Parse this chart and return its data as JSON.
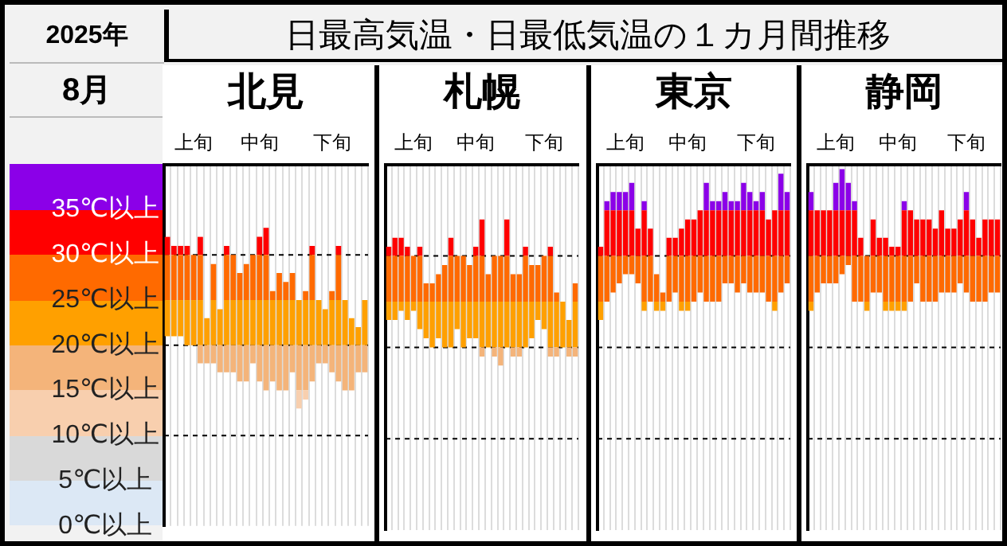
{
  "chart_data": [
    {
      "type": "other",
      "title": "日最高気温・日最低気温の１カ月間推移",
      "annotations": [
        "2025年",
        "8月"
      ]
    },
    {
      "type": "bar",
      "title": "北見",
      "grid": "x",
      "categories": [
        null,
        null,
        null,
        null,
        "上旬",
        null,
        null,
        null,
        null,
        null,
        null,
        null,
        null,
        null,
        "中旬",
        null,
        null,
        null,
        null,
        null,
        null,
        null,
        null,
        null,
        null,
        "下旬",
        null,
        null,
        null,
        null,
        null
      ],
      "ylim": [
        0,
        40
      ],
      "yticks": [
        {
          "value": 0,
          "label": "0℃以上"
        },
        {
          "value": 5,
          "label": "5℃以上"
        },
        {
          "value": 10,
          "label": "10℃以上"
        },
        {
          "value": 15,
          "label": "15℃以上"
        },
        {
          "value": 20,
          "label": "20℃以上"
        },
        {
          "value": 25,
          "label": "25℃以上"
        },
        {
          "value": 30,
          "label": "30℃以上"
        },
        {
          "value": 35,
          "label": "35℃以上"
        },
        {
          "value": 40,
          "label": null
        }
      ],
      "ref_lines": [
        {
          "axis": "y",
          "value": 10,
          "line_style": "dashed",
          "color": "#000000"
        },
        {
          "axis": "y",
          "value": 20,
          "line_style": "dashed",
          "color": "#000000"
        },
        {
          "axis": "y",
          "value": 30,
          "line_style": "dashed",
          "color": "#000000"
        }
      ],
      "series": [
        {
          "color": "#dce8f5",
          "values": [
            null,
            null,
            null,
            null,
            null,
            null,
            null,
            null,
            null,
            null,
            null,
            null,
            null,
            null,
            null,
            null,
            null,
            null,
            null,
            null,
            null,
            null,
            null,
            null,
            null,
            null,
            null,
            null,
            null,
            null,
            null
          ]
        },
        {
          "color": "#d9d9d9",
          "values": [
            null,
            null,
            null,
            null,
            null,
            null,
            null,
            null,
            null,
            null,
            null,
            null,
            null,
            null,
            null,
            null,
            null,
            null,
            null,
            null,
            null,
            null,
            null,
            null,
            null,
            null,
            null,
            null,
            null,
            null,
            null
          ]
        },
        {
          "color": "#f8cfae",
          "base": [
            null,
            null,
            null,
            null,
            null,
            null,
            null,
            null,
            null,
            null,
            null,
            null,
            null,
            null,
            null,
            null,
            null,
            null,
            null,
            null,
            13,
            14,
            null,
            null,
            null,
            null,
            null,
            null,
            null,
            null,
            null
          ],
          "values": [
            null,
            null,
            null,
            null,
            null,
            null,
            null,
            null,
            null,
            null,
            null,
            null,
            null,
            null,
            null,
            null,
            null,
            null,
            null,
            null,
            2,
            1,
            null,
            null,
            null,
            null,
            null,
            null,
            null,
            null,
            null
          ]
        },
        {
          "color": "#f4b47a",
          "base": [
            null,
            null,
            null,
            null,
            null,
            18,
            18,
            18,
            17,
            17,
            17,
            16,
            16,
            18,
            16,
            15,
            16,
            15,
            15,
            17,
            15,
            15,
            16,
            18,
            18,
            17,
            16,
            15,
            15,
            17,
            17
          ],
          "values": [
            null,
            null,
            null,
            null,
            null,
            2,
            2,
            2,
            3,
            3,
            3,
            4,
            4,
            2,
            4,
            5,
            4,
            5,
            5,
            3,
            5,
            5,
            4,
            2,
            2,
            3,
            4,
            5,
            5,
            3,
            3
          ]
        },
        {
          "color": "#ffa000",
          "base": [
            21,
            21,
            21,
            20,
            20,
            20,
            20,
            20,
            20,
            20,
            20,
            20,
            20,
            20,
            20,
            20,
            20,
            20,
            20,
            20,
            20,
            20,
            20,
            20,
            20,
            20,
            20,
            20,
            20,
            20,
            20
          ],
          "values": [
            4,
            4,
            4,
            5,
            5,
            5,
            3,
            5,
            4,
            5,
            5,
            5,
            5,
            5,
            5,
            5,
            5,
            5,
            5,
            5,
            5,
            5,
            5,
            5,
            4,
            5,
            5,
            5,
            3,
            2,
            5
          ]
        },
        {
          "color": "#ff6a00",
          "base": [
            25,
            25,
            25,
            25,
            25,
            25,
            null,
            25,
            null,
            25,
            25,
            25,
            25,
            25,
            25,
            25,
            25,
            25,
            25,
            25,
            null,
            25,
            25,
            null,
            null,
            25,
            25,
            null,
            null,
            null,
            null
          ],
          "values": [
            5,
            5,
            5,
            5,
            5,
            5,
            null,
            4,
            null,
            5,
            5,
            3,
            4,
            5,
            5,
            5,
            1,
            3,
            2,
            3,
            null,
            1,
            5,
            null,
            null,
            1,
            5,
            null,
            null,
            null,
            null
          ]
        },
        {
          "color": "#ff0000",
          "base": [
            30,
            30,
            30,
            30,
            null,
            30,
            null,
            null,
            null,
            30,
            null,
            null,
            null,
            null,
            30,
            30,
            null,
            null,
            null,
            null,
            null,
            null,
            30,
            null,
            null,
            null,
            30,
            null,
            null,
            null,
            null
          ],
          "values": [
            2,
            1,
            1,
            1,
            null,
            2,
            null,
            null,
            null,
            1,
            null,
            null,
            null,
            null,
            2,
            3,
            null,
            null,
            null,
            null,
            null,
            null,
            1,
            null,
            null,
            null,
            1,
            null,
            null,
            null,
            null
          ]
        },
        {
          "color": "#8b00e8",
          "values": [
            null,
            null,
            null,
            null,
            null,
            null,
            null,
            null,
            null,
            null,
            null,
            null,
            null,
            null,
            null,
            null,
            null,
            null,
            null,
            null,
            null,
            null,
            null,
            null,
            null,
            null,
            null,
            null,
            null,
            null,
            null
          ]
        }
      ]
    },
    {
      "type": "bar",
      "title": "札幌",
      "grid": "x",
      "tick_labels": "x",
      "categories": [
        null,
        null,
        null,
        null,
        "上旬",
        null,
        null,
        null,
        null,
        null,
        null,
        null,
        null,
        null,
        "中旬",
        null,
        null,
        null,
        null,
        null,
        null,
        null,
        null,
        null,
        null,
        "下旬",
        null,
        null,
        null,
        null,
        null
      ],
      "ylim": [
        0,
        40
      ],
      "ref_lines": [
        {
          "axis": "y",
          "value": 10,
          "line_style": "dashed",
          "color": "#000000"
        },
        {
          "axis": "y",
          "value": 20,
          "line_style": "dashed",
          "color": "#000000"
        },
        {
          "axis": "y",
          "value": 30,
          "line_style": "dashed",
          "color": "#000000"
        }
      ],
      "series": [
        {
          "color": "#f4b47a",
          "base": [
            null,
            null,
            null,
            null,
            null,
            null,
            null,
            null,
            null,
            null,
            null,
            null,
            null,
            null,
            null,
            19,
            null,
            19,
            18,
            null,
            19,
            19,
            null,
            null,
            null,
            null,
            19,
            19,
            null,
            19,
            19
          ],
          "values": [
            null,
            null,
            null,
            null,
            null,
            null,
            null,
            null,
            null,
            null,
            null,
            null,
            null,
            null,
            null,
            1,
            null,
            1,
            2,
            null,
            1,
            1,
            null,
            null,
            null,
            null,
            1,
            1,
            null,
            1,
            1
          ]
        },
        {
          "color": "#ffa000",
          "base": [
            23,
            23,
            24,
            23,
            24,
            22,
            21,
            20,
            21,
            20,
            20,
            22,
            20,
            21,
            21,
            20,
            20,
            20,
            20,
            20,
            20,
            20,
            20,
            21,
            23,
            22,
            20,
            20,
            20,
            20,
            20
          ],
          "values": [
            2,
            2,
            1,
            2,
            1,
            3,
            4,
            5,
            4,
            5,
            5,
            3,
            5,
            4,
            4,
            5,
            5,
            5,
            5,
            5,
            5,
            5,
            5,
            4,
            2,
            3,
            5,
            5,
            5,
            3,
            5
          ]
        },
        {
          "color": "#ff6a00",
          "base": [
            25,
            25,
            25,
            25,
            25,
            25,
            25,
            25,
            25,
            25,
            25,
            25,
            25,
            25,
            25,
            25,
            25,
            25,
            25,
            25,
            25,
            25,
            25,
            25,
            25,
            25,
            25,
            25,
            null,
            null,
            25
          ],
          "values": [
            5,
            5,
            5,
            5,
            5,
            5,
            2,
            2,
            3,
            4,
            5,
            5,
            5,
            4,
            5,
            5,
            3,
            5,
            5,
            5,
            3,
            3,
            5,
            4,
            4,
            5,
            5,
            1,
            null,
            null,
            2
          ]
        },
        {
          "color": "#ff0000",
          "base": [
            30,
            30,
            30,
            30,
            null,
            30,
            null,
            null,
            null,
            null,
            30,
            null,
            null,
            null,
            30,
            30,
            null,
            null,
            null,
            30,
            null,
            null,
            30,
            null,
            null,
            null,
            30,
            null,
            null,
            null,
            null
          ],
          "values": [
            1,
            2,
            2,
            1,
            null,
            1,
            null,
            null,
            null,
            null,
            2,
            null,
            null,
            null,
            1,
            4,
            null,
            null,
            null,
            4,
            null,
            null,
            1,
            null,
            null,
            null,
            1,
            null,
            null,
            null,
            null
          ]
        }
      ]
    },
    {
      "type": "bar",
      "title": "東京",
      "grid": "x",
      "tick_labels": "x",
      "categories": [
        null,
        null,
        null,
        null,
        "上旬",
        null,
        null,
        null,
        null,
        null,
        null,
        null,
        null,
        null,
        "中旬",
        null,
        null,
        null,
        null,
        null,
        null,
        null,
        null,
        null,
        null,
        "下旬",
        null,
        null,
        null,
        null,
        null
      ],
      "ylim": [
        0,
        40
      ],
      "ref_lines": [
        {
          "axis": "y",
          "value": 10,
          "line_style": "dashed",
          "color": "#000000"
        },
        {
          "axis": "y",
          "value": 20,
          "line_style": "dashed",
          "color": "#000000"
        },
        {
          "axis": "y",
          "value": 30,
          "line_style": "dashed",
          "color": "#000000"
        }
      ],
      "series": [
        {
          "color": "#ffa000",
          "base": [
            23,
            null,
            null,
            null,
            null,
            null,
            null,
            24,
            null,
            24,
            24,
            null,
            null,
            24,
            24,
            null,
            null,
            null,
            null,
            null,
            null,
            null,
            null,
            null,
            null,
            null,
            null,
            null,
            24,
            null,
            null
          ],
          "values": [
            2,
            null,
            null,
            null,
            null,
            null,
            null,
            1,
            null,
            1,
            1,
            null,
            null,
            1,
            1,
            null,
            null,
            null,
            null,
            null,
            null,
            null,
            null,
            null,
            null,
            null,
            null,
            null,
            1,
            null,
            null
          ]
        },
        {
          "color": "#ff6a00",
          "base": [
            25,
            25,
            26,
            27,
            28,
            28,
            27,
            25,
            25,
            25,
            25,
            25,
            26,
            25,
            25,
            25,
            26,
            25,
            25,
            25,
            27,
            27,
            26,
            27,
            26,
            26,
            26,
            25,
            25,
            26,
            27
          ],
          "values": [
            5,
            5,
            4,
            3,
            2,
            2,
            3,
            5,
            5,
            3,
            1,
            5,
            4,
            5,
            5,
            5,
            4,
            5,
            5,
            5,
            3,
            3,
            4,
            3,
            4,
            4,
            4,
            5,
            5,
            4,
            3
          ]
        },
        {
          "color": "#ff0000",
          "base": [
            30,
            30,
            30,
            30,
            30,
            30,
            30,
            30,
            30,
            null,
            null,
            30,
            30,
            30,
            30,
            30,
            30,
            30,
            30,
            30,
            30,
            30,
            30,
            30,
            30,
            30,
            30,
            30,
            30,
            30,
            30
          ],
          "values": [
            1,
            5,
            5,
            5,
            5,
            5,
            3,
            5,
            3,
            null,
            null,
            2,
            2,
            3,
            4,
            4,
            5,
            5,
            5,
            5,
            5,
            5,
            5,
            5,
            5,
            5,
            5,
            4,
            5,
            5,
            5
          ]
        },
        {
          "color": "#8b00e8",
          "base": [
            null,
            35,
            35,
            35,
            35,
            35,
            null,
            35,
            null,
            null,
            null,
            null,
            null,
            null,
            null,
            null,
            null,
            35,
            35,
            35,
            35,
            35,
            35,
            35,
            35,
            35,
            35,
            null,
            null,
            35,
            35
          ],
          "values": [
            null,
            1,
            2,
            2,
            2,
            3,
            null,
            1,
            null,
            null,
            null,
            null,
            null,
            null,
            null,
            null,
            null,
            3,
            1,
            1,
            2,
            1,
            1,
            3,
            2,
            1,
            2,
            null,
            null,
            4,
            2
          ]
        }
      ]
    },
    {
      "type": "bar",
      "title": "静岡",
      "grid": "x",
      "tick_labels": "x",
      "categories": [
        null,
        null,
        null,
        null,
        "上旬",
        null,
        null,
        null,
        null,
        null,
        null,
        null,
        null,
        null,
        "中旬",
        null,
        null,
        null,
        null,
        null,
        null,
        null,
        null,
        null,
        null,
        "下旬",
        null,
        null,
        null,
        null,
        null
      ],
      "ylim": [
        0,
        40
      ],
      "ref_lines": [
        {
          "axis": "y",
          "value": 10,
          "line_style": "dashed",
          "color": "#000000"
        },
        {
          "axis": "y",
          "value": 20,
          "line_style": "dashed",
          "color": "#000000"
        },
        {
          "axis": "y",
          "value": 30,
          "line_style": "dashed",
          "color": "#000000"
        }
      ],
      "series": [
        {
          "color": "#ffa000",
          "base": [
            24,
            null,
            null,
            null,
            null,
            null,
            null,
            null,
            null,
            24,
            null,
            null,
            24,
            24,
            24,
            24,
            null,
            null,
            null,
            null,
            null,
            null,
            null,
            null,
            null,
            null,
            null,
            null,
            null,
            null,
            null
          ],
          "values": [
            1,
            null,
            null,
            null,
            null,
            null,
            null,
            null,
            null,
            1,
            null,
            null,
            1,
            1,
            1,
            1,
            null,
            null,
            null,
            null,
            null,
            null,
            null,
            null,
            null,
            null,
            null,
            null,
            null,
            null,
            null
          ]
        },
        {
          "color": "#ff6a00",
          "base": [
            25,
            26,
            27,
            27,
            27,
            28,
            29,
            25,
            25,
            25,
            26,
            26,
            25,
            25,
            25,
            25,
            25,
            27,
            25,
            25,
            25,
            26,
            26,
            26,
            27,
            26,
            25,
            25,
            25,
            26,
            26
          ],
          "values": [
            5,
            4,
            3,
            3,
            3,
            2,
            1,
            5,
            5,
            5,
            4,
            4,
            5,
            5,
            5,
            5,
            5,
            3,
            5,
            5,
            5,
            4,
            4,
            4,
            3,
            4,
            5,
            5,
            5,
            4,
            4
          ]
        },
        {
          "color": "#ff0000",
          "base": [
            30,
            30,
            30,
            30,
            30,
            30,
            30,
            30,
            30,
            null,
            30,
            30,
            30,
            30,
            30,
            30,
            30,
            30,
            30,
            30,
            30,
            30,
            30,
            30,
            30,
            30,
            30,
            30,
            30,
            30,
            30
          ],
          "values": [
            5,
            5,
            5,
            5,
            5,
            5,
            5,
            5,
            2,
            null,
            4,
            2,
            2,
            1,
            1,
            5,
            5,
            4,
            4,
            4,
            3,
            5,
            3,
            3,
            4,
            5,
            4,
            2,
            4,
            4,
            4
          ]
        },
        {
          "color": "#8b00e8",
          "base": [
            35,
            null,
            null,
            null,
            35,
            35,
            35,
            35,
            null,
            null,
            null,
            null,
            null,
            null,
            null,
            35,
            null,
            null,
            null,
            null,
            null,
            null,
            null,
            null,
            null,
            35,
            null,
            null,
            null,
            null,
            null
          ],
          "values": [
            2,
            null,
            null,
            null,
            3,
            4.5,
            3,
            1,
            null,
            null,
            null,
            null,
            null,
            null,
            null,
            1,
            null,
            null,
            null,
            null,
            null,
            null,
            null,
            null,
            null,
            2,
            null,
            null,
            null,
            null,
            null
          ]
        }
      ]
    }
  ]
}
